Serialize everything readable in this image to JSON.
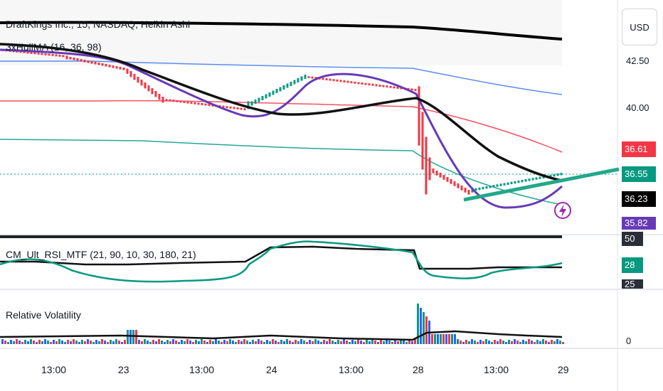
{
  "header": {
    "symbol_line": "DraftKings Inc., 15, NASDAQ, Heikin Ashi",
    "indicator_main": "3xHullMA (16, 36, 98)"
  },
  "currency_button": "USD",
  "price_axis": {
    "ticks": [
      "42.50",
      "40.00"
    ],
    "tags": [
      {
        "label": "36.61",
        "color": "#f23645"
      },
      {
        "label": "36.55",
        "color": "#089981"
      },
      {
        "label": "36.23",
        "color": "#000000"
      },
      {
        "label": "35.82",
        "color": "#673ab7"
      }
    ]
  },
  "rsi_pane": {
    "title": "CM_Ult_RSI_MTF (21, 90, 10, 30, 180, 21)",
    "tags": [
      {
        "label": "50",
        "color": "#2a2e39"
      },
      {
        "label": "28",
        "color": "#089981"
      },
      {
        "label": "25",
        "color": "#2a2e39"
      }
    ]
  },
  "volatility_pane": {
    "title": "Relative Volatility",
    "tick": "0"
  },
  "time_axis": {
    "ticks": [
      "13:00",
      "23",
      "13:00",
      "24",
      "13:00",
      "28",
      "13:00",
      "29"
    ]
  },
  "colors": {
    "up": "#089981",
    "down": "#f23645",
    "hull_fast": "#673ab7",
    "hull_slow": "#000000",
    "band_blue": "#5b8def",
    "band_red": "#f7525f",
    "band_green": "#26a69a",
    "trendline": "#22a88a"
  },
  "icons": {
    "alert": "lightning-alert-icon"
  }
}
